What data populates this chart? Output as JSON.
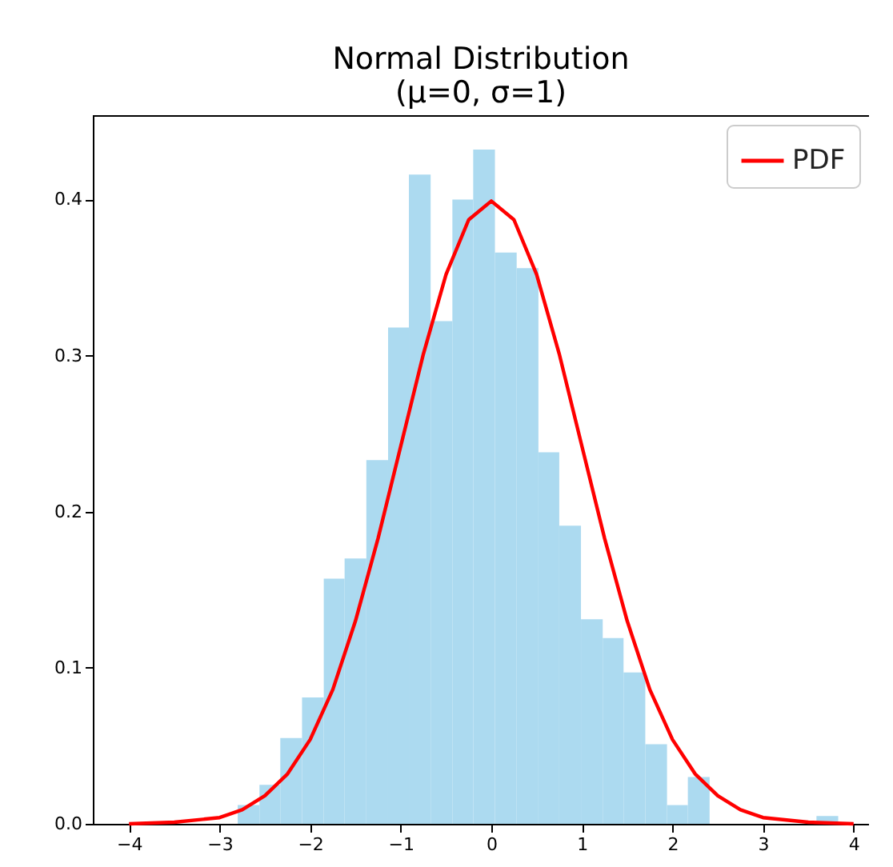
{
  "chart_data": {
    "type": "histogram",
    "title": "Normal Distribution\n(μ=0, σ=1)",
    "color": "#acdaf0",
    "bins": [
      -2.8,
      -2.56,
      -2.33,
      -2.09,
      -1.85,
      -1.62,
      -1.38,
      -1.14,
      -0.91,
      -0.67,
      -0.43,
      -0.2,
      0.04,
      0.28,
      0.52,
      0.75,
      0.99,
      1.23,
      1.46,
      1.7,
      1.94,
      2.17,
      2.41,
      3.59,
      3.83
    ],
    "values": [
      0.012,
      0.025,
      0.055,
      0.081,
      0.157,
      0.17,
      0.233,
      0.318,
      0.416,
      0.322,
      0.4,
      0.432,
      0.366,
      0.356,
      0.238,
      0.191,
      0.131,
      0.119,
      0.097,
      0.051,
      0.012,
      0.03,
      0,
      0.005
    ],
    "series": [
      {
        "name": "PDF",
        "type": "line",
        "color": "#ff0000",
        "x": [
          -4,
          -3.5,
          -3,
          -2.75,
          -2.5,
          -2.25,
          -2,
          -1.75,
          -1.5,
          -1.25,
          -1,
          -0.75,
          -0.5,
          -0.25,
          0,
          0.25,
          0.5,
          0.75,
          1,
          1.25,
          1.5,
          1.75,
          2,
          2.25,
          2.5,
          2.75,
          3,
          3.5,
          4
        ],
        "values": [
          0.0,
          0.001,
          0.004,
          0.009,
          0.018,
          0.032,
          0.054,
          0.086,
          0.13,
          0.183,
          0.242,
          0.301,
          0.352,
          0.387,
          0.399,
          0.387,
          0.352,
          0.301,
          0.242,
          0.183,
          0.13,
          0.086,
          0.054,
          0.032,
          0.018,
          0.009,
          0.004,
          0.001,
          0.0
        ]
      }
    ],
    "xlim": [
      -4.4,
      4.17
    ],
    "ylim": [
      0,
      0.454
    ],
    "xticks": [
      -4,
      -3,
      -2,
      -1,
      0,
      1,
      2,
      3,
      4
    ],
    "yticks": [
      {
        "value": 0,
        "label": "0.0"
      },
      {
        "value": 0.1,
        "label": "0.1"
      },
      {
        "value": 0.2,
        "label": "0.2"
      },
      {
        "value": 0.3,
        "label": "0.3"
      },
      {
        "value": 0.4,
        "label": "0.4"
      }
    ],
    "grid": false,
    "legend": "top right",
    "line_style": "solid",
    "marker": "none"
  }
}
